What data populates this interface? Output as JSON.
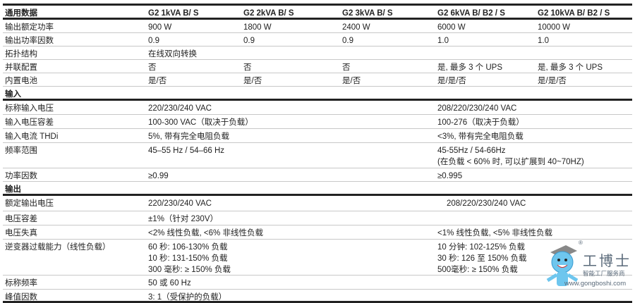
{
  "table": {
    "rows": [
      {
        "type": "header",
        "h": 20,
        "label": "通用数据",
        "cells": [
          {
            "col": 0,
            "text": "G2 1kVA B/ S"
          },
          {
            "col": 1,
            "text": "G2 2kVA B/ S"
          },
          {
            "col": 2,
            "text": "G2 3kVA B/ S"
          },
          {
            "col": 3,
            "text": "G2 6kVA B/ B2 / S"
          },
          {
            "col": 4,
            "text": "G2 10kVA B/ B2 / S"
          }
        ]
      },
      {
        "type": "data",
        "h": 19,
        "label": "输出额定功率",
        "cells": [
          {
            "col": 0,
            "text": "900 W"
          },
          {
            "col": 1,
            "text": "1800 W"
          },
          {
            "col": 2,
            "text": "2400 W"
          },
          {
            "col": 3,
            "text": "6000 W"
          },
          {
            "col": 4,
            "text": "10000 W"
          }
        ]
      },
      {
        "type": "data",
        "h": 19,
        "label": "输出功率因数",
        "cells": [
          {
            "col": 0,
            "text": "0.9"
          },
          {
            "col": 1,
            "text": "0.9"
          },
          {
            "col": 2,
            "text": "0.9"
          },
          {
            "col": 3,
            "text": "1.0"
          },
          {
            "col": 4,
            "text": "1.0"
          }
        ]
      },
      {
        "type": "data",
        "h": 19,
        "label": "拓扑结构",
        "cells": [
          {
            "col": 0,
            "text": "在线双向转换"
          }
        ]
      },
      {
        "type": "data",
        "h": 19,
        "label": "并联配置",
        "cells": [
          {
            "col": 0,
            "text": "否"
          },
          {
            "col": 1,
            "text": "否"
          },
          {
            "col": 2,
            "text": "否"
          },
          {
            "col": 3,
            "text": "是, 最多 3 个 UPS"
          },
          {
            "col": 4,
            "text": "是, 最多 3 个 UPS"
          }
        ]
      },
      {
        "type": "data",
        "h": 19,
        "label": "内置电池",
        "cells": [
          {
            "col": 0,
            "text": "是/否"
          },
          {
            "col": 1,
            "text": "是/否"
          },
          {
            "col": 2,
            "text": "是/否"
          },
          {
            "col": 3,
            "text": "是/是/否"
          },
          {
            "col": 4,
            "text": "是/是/否"
          }
        ]
      },
      {
        "type": "section",
        "h": 20,
        "label": "输入",
        "cells": []
      },
      {
        "type": "data",
        "h": 20,
        "label": "标称输入电压",
        "cells": [
          {
            "col": 0,
            "text": "220/230/240 VAC"
          },
          {
            "col": 3,
            "text": "208/220/230/240 VAC"
          }
        ]
      },
      {
        "type": "data",
        "h": 20,
        "label": "输入电压容差",
        "cells": [
          {
            "col": 0,
            "text": "100-300 VAC（取决于负载）"
          },
          {
            "col": 3,
            "text": "100-276（取决于负载）"
          }
        ]
      },
      {
        "type": "data",
        "h": 20,
        "label": "输入电流 THDi",
        "cells": [
          {
            "col": 0,
            "text": "5%, 带有完全电阻负载"
          },
          {
            "col": 3,
            "text": "<3%, 带有完全电阻负载"
          }
        ]
      },
      {
        "type": "data",
        "h": 36,
        "label": "频率范围",
        "cells": [
          {
            "col": 0,
            "text": "45–55 Hz / 54–66 Hz"
          },
          {
            "col": 3,
            "text": "45-55Hz / 54-66Hz\n(在负载 < 60% 时, 可以扩展到 40~70HZ)"
          }
        ]
      },
      {
        "type": "data",
        "h": 19,
        "label": "功率因数",
        "cells": [
          {
            "col": 0,
            "text": "≥0.99"
          },
          {
            "col": 3,
            "text": "≥0.995"
          }
        ]
      },
      {
        "type": "section",
        "h": 20,
        "label": "输出",
        "cells": []
      },
      {
        "type": "data",
        "h": 22,
        "label": "额定输出电压",
        "cells": [
          {
            "col": 0,
            "text": "220/230/240 VAC"
          },
          {
            "col": 3,
            "text": "208/220/230/240 VAC",
            "indent": true
          }
        ]
      },
      {
        "type": "data",
        "h": 20,
        "label": "电压容差",
        "cells": [
          {
            "col": 0,
            "text": "±1%（针对 230V）"
          }
        ]
      },
      {
        "type": "data",
        "h": 20,
        "label": "电压失真",
        "cells": [
          {
            "col": 0,
            "text": "<2% 线性负载, <6% 非线性负载"
          },
          {
            "col": 3,
            "text": "<1% 线性负载, <5% 非线性负载"
          }
        ]
      },
      {
        "type": "data",
        "h": 51,
        "label": "逆变器过载能力（线性负载）",
        "cells": [
          {
            "col": 0,
            "text": "60 秒: 106-130% 负载\n10 秒: 131-150% 负载\n300 毫秒: ≥ 150% 负载"
          },
          {
            "col": 3,
            "text": "10 分钟: 102-125% 负载\n30 秒: 126 至 150% 负载\n500毫秒: ≥ 150% 负载"
          }
        ]
      },
      {
        "type": "data",
        "h": 20,
        "label": "标称频率",
        "cells": [
          {
            "col": 0,
            "text": "50 或 60 Hz"
          }
        ]
      },
      {
        "type": "last",
        "h": 19,
        "label": "峰值因数",
        "cells": [
          {
            "col": 0,
            "text": "3: 1（受保护的负载）"
          }
        ]
      }
    ]
  },
  "watermark": {
    "brand": "工博士",
    "tagline": "智能工厂服务商",
    "url": "www.gongboshi.com",
    "registered": "®",
    "color": "#5a6a7a",
    "mascot_color": "#6ec6ee"
  }
}
